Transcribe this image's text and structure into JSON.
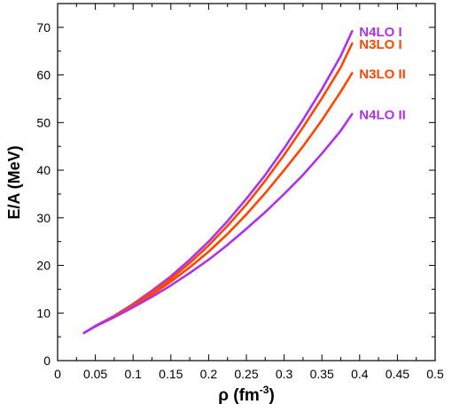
{
  "chart_data": {
    "type": "line",
    "xlabel": "ρ (fm",
    "xlabel_sup": "-3",
    "xlabel_end": ")",
    "ylabel": "E/A (MeV)",
    "xlim": [
      0,
      0.5
    ],
    "ylim": [
      0,
      75
    ],
    "xticks": [
      "0",
      "0.05",
      "0.1",
      "0.15",
      "0.2",
      "0.25",
      "0.3",
      "0.35",
      "0.4",
      "0.45",
      "0.5"
    ],
    "yticks": [
      "0",
      "10",
      "20",
      "30",
      "40",
      "50",
      "60",
      "70"
    ],
    "grid": false,
    "series": [
      {
        "name": "N4LO I",
        "color": "#b030f0",
        "x": [
          0.035,
          0.05,
          0.075,
          0.1,
          0.125,
          0.15,
          0.175,
          0.2,
          0.225,
          0.25,
          0.275,
          0.3,
          0.325,
          0.35,
          0.375,
          0.39
        ],
        "y": [
          5.8,
          7.3,
          9.4,
          11.9,
          14.7,
          17.7,
          21.2,
          25.0,
          29.3,
          34.0,
          39.0,
          44.6,
          50.6,
          57.0,
          64.0,
          69.2
        ]
      },
      {
        "name": "N3LO I",
        "color": "#ff4500",
        "x": [
          0.035,
          0.05,
          0.075,
          0.1,
          0.125,
          0.15,
          0.175,
          0.2,
          0.225,
          0.25,
          0.275,
          0.3,
          0.325,
          0.35,
          0.375,
          0.39
        ],
        "y": [
          5.8,
          7.2,
          9.3,
          11.7,
          14.3,
          17.2,
          20.5,
          24.2,
          28.3,
          32.8,
          37.8,
          43.2,
          49.0,
          55.1,
          61.6,
          66.6
        ]
      },
      {
        "name": "N3LO II",
        "color": "#ff4500",
        "x": [
          0.035,
          0.05,
          0.075,
          0.1,
          0.125,
          0.15,
          0.175,
          0.2,
          0.225,
          0.25,
          0.275,
          0.3,
          0.325,
          0.35,
          0.375,
          0.39
        ],
        "y": [
          5.8,
          7.2,
          9.2,
          11.5,
          13.9,
          16.6,
          19.6,
          22.9,
          26.6,
          30.7,
          35.2,
          40.0,
          45.0,
          50.5,
          56.5,
          60.4
        ]
      },
      {
        "name": "N4LO II",
        "color": "#b030f0",
        "x": [
          0.035,
          0.05,
          0.075,
          0.1,
          0.125,
          0.15,
          0.175,
          0.2,
          0.225,
          0.25,
          0.275,
          0.3,
          0.325,
          0.35,
          0.375,
          0.39
        ],
        "y": [
          5.8,
          7.2,
          9.1,
          11.2,
          13.4,
          15.8,
          18.4,
          21.2,
          24.3,
          27.7,
          31.2,
          35.0,
          39.0,
          43.5,
          48.3,
          51.8
        ]
      }
    ]
  }
}
